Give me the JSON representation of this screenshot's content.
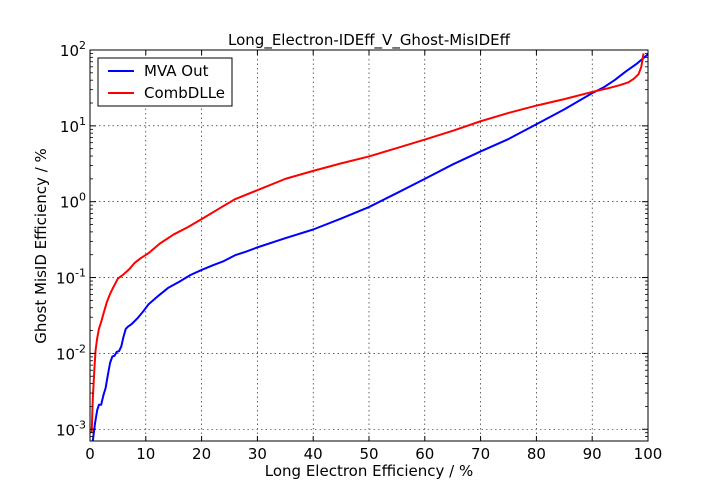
{
  "chart_data": {
    "type": "line",
    "title": "Long_Electron-IDEff_V_Ghost-MisIDEff",
    "xlabel": "Long Electron Efficiency / %",
    "ylabel": "Ghost MisID Efficiency / %",
    "xlim": [
      0,
      100
    ],
    "ylim": [
      0.0007,
      100
    ],
    "yscale": "log",
    "grid": true,
    "legend_position": "top-left",
    "x_ticks": [
      "0",
      "10",
      "20",
      "30",
      "40",
      "50",
      "60",
      "70",
      "80",
      "90",
      "100"
    ],
    "y_ticks": [
      {
        "base": "10",
        "exp": "-3"
      },
      {
        "base": "10",
        "exp": "-2"
      },
      {
        "base": "10",
        "exp": "-1"
      },
      {
        "base": "10",
        "exp": "0"
      },
      {
        "base": "10",
        "exp": "1"
      },
      {
        "base": "10",
        "exp": "2"
      }
    ],
    "series": [
      {
        "name": "MVA Out",
        "color": "#0000ff",
        "x": [
          0.5,
          0.9,
          1.3,
          1.6,
          2.0,
          2.4,
          2.8,
          3.2,
          3.6,
          4.0,
          4.4,
          4.8,
          5.2,
          5.6,
          6.0,
          6.4,
          6.8,
          7.5,
          8.5,
          9.5,
          10.5,
          12,
          14,
          16,
          18,
          20,
          22,
          24,
          26,
          28,
          30,
          35,
          40,
          45,
          50,
          55,
          60,
          65,
          70,
          75,
          80,
          85,
          90,
          92,
          94,
          96,
          98,
          100
        ],
        "y": [
          0.0007,
          0.0012,
          0.0018,
          0.0021,
          0.0021,
          0.0028,
          0.0035,
          0.0052,
          0.0075,
          0.0091,
          0.0093,
          0.0105,
          0.0107,
          0.0123,
          0.0165,
          0.021,
          0.0225,
          0.0245,
          0.029,
          0.0355,
          0.0445,
          0.0555,
          0.073,
          0.088,
          0.108,
          0.126,
          0.145,
          0.165,
          0.197,
          0.22,
          0.25,
          0.33,
          0.43,
          0.6,
          0.85,
          1.3,
          2.0,
          3.1,
          4.6,
          6.7,
          10.5,
          16.5,
          27,
          32,
          40,
          52,
          66,
          88
        ]
      },
      {
        "name": "CombDLLe",
        "color": "#ff0000",
        "x": [
          0.3,
          0.5,
          0.8,
          1.0,
          1.3,
          1.6,
          2.0,
          2.4,
          3.0,
          3.6,
          4.2,
          5.0,
          6.0,
          7.0,
          8.0,
          9.0,
          10.5,
          12.5,
          15,
          17.5,
          20,
          23,
          26,
          30,
          35,
          40,
          45,
          50,
          55,
          60,
          65,
          70,
          75,
          80,
          85,
          90,
          93,
          95,
          96.5,
          97.5,
          98.3,
          98.8,
          99.2
        ],
        "y": [
          0.0009,
          0.0025,
          0.0065,
          0.011,
          0.016,
          0.021,
          0.026,
          0.033,
          0.047,
          0.061,
          0.075,
          0.097,
          0.11,
          0.128,
          0.156,
          0.178,
          0.21,
          0.28,
          0.37,
          0.46,
          0.59,
          0.8,
          1.08,
          1.42,
          2.0,
          2.55,
          3.2,
          3.95,
          5.1,
          6.6,
          8.6,
          11.5,
          14.8,
          18.5,
          22.5,
          28,
          31.5,
          34.5,
          37.5,
          42,
          48,
          60,
          90
        ]
      }
    ]
  }
}
